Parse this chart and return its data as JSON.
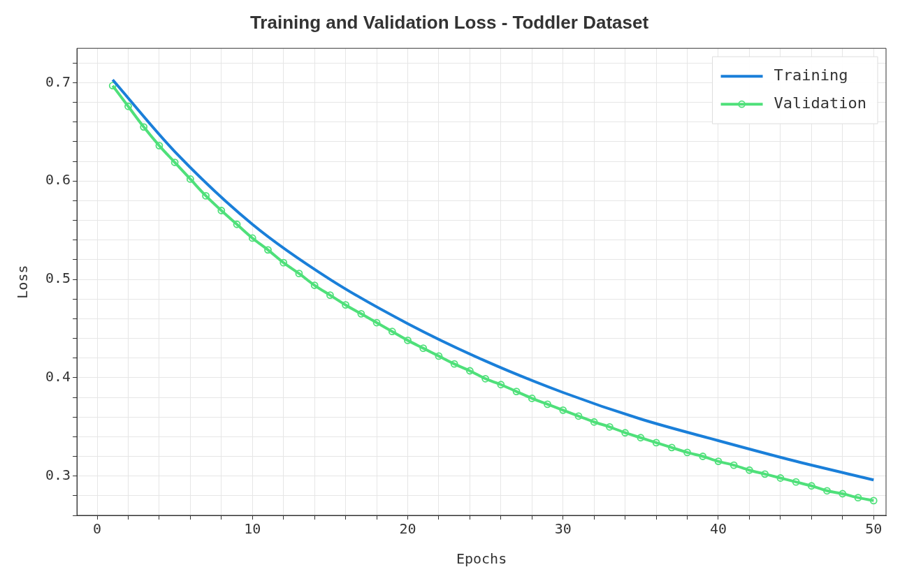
{
  "chart_data": {
    "type": "line",
    "title": "Training and Validation Loss - Toddler Dataset",
    "xlabel": "Epochs",
    "ylabel": "Loss",
    "xlim": [
      -1.3,
      50.8
    ],
    "xticks": [
      0,
      {
        "value": 2,
        "label": null
      },
      {
        "value": 4,
        "label": null
      },
      {
        "value": 6,
        "label": null
      },
      {
        "value": 8,
        "label": null
      },
      10,
      {
        "value": 12,
        "label": null
      },
      {
        "value": 14,
        "label": null
      },
      {
        "value": 16,
        "label": null
      },
      {
        "value": 18,
        "label": null
      },
      20,
      {
        "value": 22,
        "label": null
      },
      {
        "value": 24,
        "label": null
      },
      {
        "value": 26,
        "label": null
      },
      {
        "value": 28,
        "label": null
      },
      30,
      {
        "value": 32,
        "label": null
      },
      {
        "value": 34,
        "label": null
      },
      {
        "value": 36,
        "label": null
      },
      {
        "value": 38,
        "label": null
      },
      40,
      {
        "value": 42,
        "label": null
      },
      {
        "value": 44,
        "label": null
      },
      {
        "value": 46,
        "label": null
      },
      {
        "value": 48,
        "label": null
      },
      50
    ],
    "ylim": [
      0.26,
      0.735
    ],
    "yticks": [
      {
        "value": 0.26,
        "label": null
      },
      {
        "value": 0.28,
        "label": null
      },
      0.3,
      {
        "value": 0.32,
        "label": null
      },
      {
        "value": 0.34,
        "label": null
      },
      {
        "value": 0.36,
        "label": null
      },
      {
        "value": 0.38,
        "label": null
      },
      0.4,
      {
        "value": 0.42,
        "label": null
      },
      {
        "value": 0.44,
        "label": null
      },
      {
        "value": 0.46,
        "label": null
      },
      {
        "value": 0.48,
        "label": null
      },
      0.5,
      {
        "value": 0.52,
        "label": null
      },
      {
        "value": 0.54,
        "label": null
      },
      {
        "value": 0.56,
        "label": null
      },
      {
        "value": 0.58,
        "label": null
      },
      0.6,
      {
        "value": 0.62,
        "label": null
      },
      {
        "value": 0.64,
        "label": null
      },
      {
        "value": 0.66,
        "label": null
      },
      {
        "value": 0.68,
        "label": null
      },
      0.7,
      {
        "value": 0.72,
        "label": null
      }
    ],
    "grid": true,
    "legend": "top right",
    "series": [
      {
        "name": "Training",
        "color": "#1a7fd9",
        "marker": "none",
        "x": [
          1,
          5,
          10,
          15,
          20,
          25,
          30,
          35,
          40,
          45,
          50
        ],
        "values": [
          0.703,
          0.63,
          0.556,
          0.5,
          0.455,
          0.417,
          0.385,
          0.358,
          0.336,
          0.315,
          0.296
        ]
      },
      {
        "name": "Validation",
        "color": "#4fe07a",
        "marker": "circle",
        "x": [
          1,
          2,
          3,
          4,
          5,
          6,
          7,
          8,
          9,
          10,
          11,
          12,
          13,
          14,
          15,
          16,
          17,
          18,
          19,
          20,
          21,
          22,
          23,
          24,
          25,
          26,
          27,
          28,
          29,
          30,
          31,
          32,
          33,
          34,
          35,
          36,
          37,
          38,
          39,
          40,
          41,
          42,
          43,
          44,
          45,
          46,
          47,
          48,
          49,
          50
        ],
        "values": [
          0.697,
          0.676,
          0.655,
          0.636,
          0.619,
          0.602,
          0.585,
          0.57,
          0.556,
          0.542,
          0.53,
          0.517,
          0.506,
          0.494,
          0.484,
          0.474,
          0.465,
          0.456,
          0.447,
          0.438,
          0.43,
          0.422,
          0.414,
          0.407,
          0.399,
          0.393,
          0.386,
          0.379,
          0.373,
          0.367,
          0.361,
          0.355,
          0.35,
          0.344,
          0.339,
          0.334,
          0.329,
          0.324,
          0.32,
          0.315,
          0.311,
          0.306,
          0.302,
          0.298,
          0.294,
          0.29,
          0.285,
          0.282,
          0.278,
          0.275
        ]
      }
    ]
  }
}
